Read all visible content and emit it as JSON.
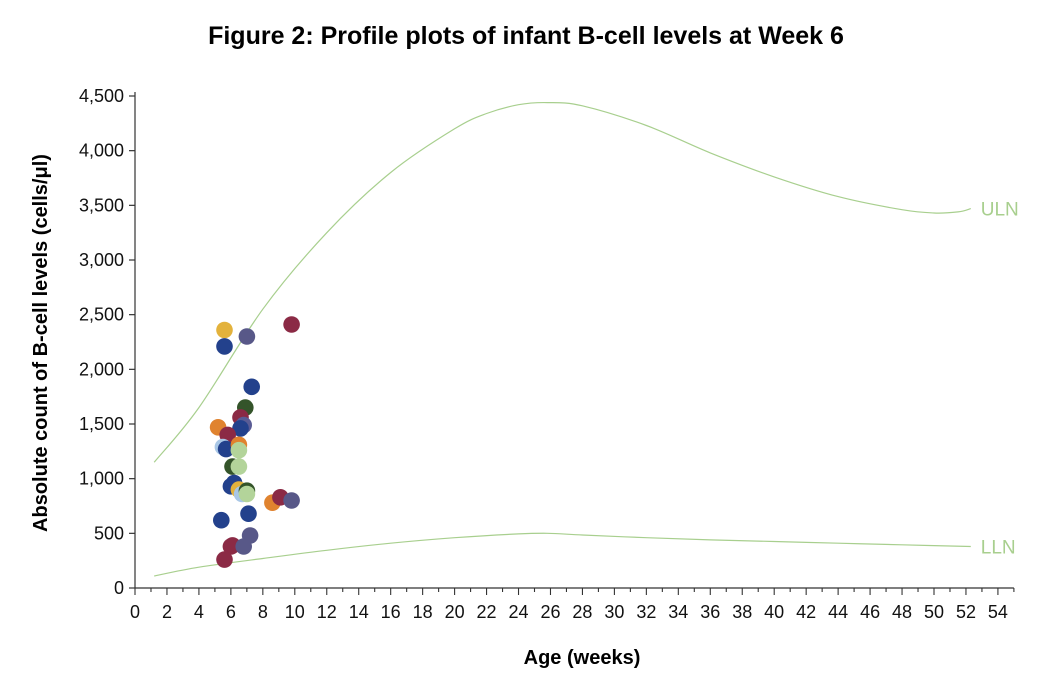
{
  "chart_data": {
    "type": "scatter",
    "title": "Figure 2: Profile plots of infant B-cell levels at Week 6",
    "xlabel": "Age (weeks)",
    "ylabel": "Absolute count of B-cell levels (cells/μl)",
    "xlim": [
      0,
      55
    ],
    "ylim": [
      0,
      4500
    ],
    "x_ticks": [
      0,
      2,
      4,
      6,
      8,
      10,
      12,
      14,
      16,
      18,
      20,
      22,
      24,
      26,
      28,
      30,
      32,
      34,
      36,
      38,
      40,
      42,
      44,
      46,
      48,
      50,
      52,
      54
    ],
    "y_ticks": [
      0,
      500,
      1000,
      1500,
      2000,
      2500,
      3000,
      3500,
      4000,
      4500
    ],
    "y_tick_labels": [
      "0",
      "500",
      "1,000",
      "1,500",
      "2,000",
      "2,500",
      "3,000",
      "3,500",
      "4,000",
      "4,500"
    ],
    "grid": false,
    "reference_lines": [
      {
        "name": "ULN",
        "color": "#a8cf8e",
        "x": [
          1.2,
          4,
          8,
          12,
          16,
          20,
          22,
          24,
          25.8,
          28,
          32,
          36,
          40,
          44,
          48,
          50,
          51.5,
          52.3
        ],
        "y": [
          1150,
          1650,
          2550,
          3250,
          3800,
          4200,
          4340,
          4420,
          4440,
          4410,
          4230,
          3980,
          3760,
          3580,
          3460,
          3430,
          3440,
          3470
        ]
      },
      {
        "name": "LLN",
        "color": "#a8cf8e",
        "x": [
          1.2,
          4,
          8,
          12,
          16,
          20,
          24,
          25.8,
          28,
          32,
          36,
          40,
          44,
          48,
          52.3
        ],
        "y": [
          110,
          190,
          270,
          345,
          410,
          460,
          495,
          500,
          485,
          460,
          440,
          425,
          410,
          395,
          380
        ]
      }
    ],
    "points": [
      {
        "x": 5.6,
        "y": 2360,
        "color": "#e3b23c"
      },
      {
        "x": 5.6,
        "y": 2210,
        "color": "#23418c"
      },
      {
        "x": 7.0,
        "y": 2300,
        "color": "#585888"
      },
      {
        "x": 9.8,
        "y": 2410,
        "color": "#8b2a45"
      },
      {
        "x": 7.3,
        "y": 1840,
        "color": "#23418c"
      },
      {
        "x": 6.9,
        "y": 1650,
        "color": "#34542a"
      },
      {
        "x": 6.6,
        "y": 1560,
        "color": "#8b2a45"
      },
      {
        "x": 5.2,
        "y": 1470,
        "color": "#e0832f"
      },
      {
        "x": 6.8,
        "y": 1490,
        "color": "#5a5c95"
      },
      {
        "x": 6.6,
        "y": 1460,
        "color": "#23418c"
      },
      {
        "x": 5.8,
        "y": 1400,
        "color": "#8b2a45"
      },
      {
        "x": 5.5,
        "y": 1290,
        "color": "#a9c7e6"
      },
      {
        "x": 5.7,
        "y": 1270,
        "color": "#23418c"
      },
      {
        "x": 6.5,
        "y": 1310,
        "color": "#e0832f"
      },
      {
        "x": 6.5,
        "y": 1260,
        "color": "#b3d49a"
      },
      {
        "x": 6.1,
        "y": 1110,
        "color": "#34542a"
      },
      {
        "x": 6.5,
        "y": 1110,
        "color": "#b3d49a"
      },
      {
        "x": 6.0,
        "y": 930,
        "color": "#23418c"
      },
      {
        "x": 6.2,
        "y": 960,
        "color": "#23418c"
      },
      {
        "x": 6.5,
        "y": 900,
        "color": "#e3b23c"
      },
      {
        "x": 6.7,
        "y": 860,
        "color": "#a9c7e6"
      },
      {
        "x": 7.0,
        "y": 890,
        "color": "#34542a"
      },
      {
        "x": 7.0,
        "y": 860,
        "color": "#b3d49a"
      },
      {
        "x": 8.6,
        "y": 780,
        "color": "#e0832f"
      },
      {
        "x": 9.1,
        "y": 830,
        "color": "#8b2a45"
      },
      {
        "x": 9.8,
        "y": 800,
        "color": "#585888"
      },
      {
        "x": 5.4,
        "y": 620,
        "color": "#23418c"
      },
      {
        "x": 7.1,
        "y": 680,
        "color": "#23418c"
      },
      {
        "x": 7.2,
        "y": 480,
        "color": "#585888"
      },
      {
        "x": 6.0,
        "y": 380,
        "color": "#8b2a45"
      },
      {
        "x": 6.1,
        "y": 390,
        "color": "#8b2a45"
      },
      {
        "x": 6.8,
        "y": 380,
        "color": "#585888"
      },
      {
        "x": 5.6,
        "y": 260,
        "color": "#8b2a45"
      }
    ]
  }
}
